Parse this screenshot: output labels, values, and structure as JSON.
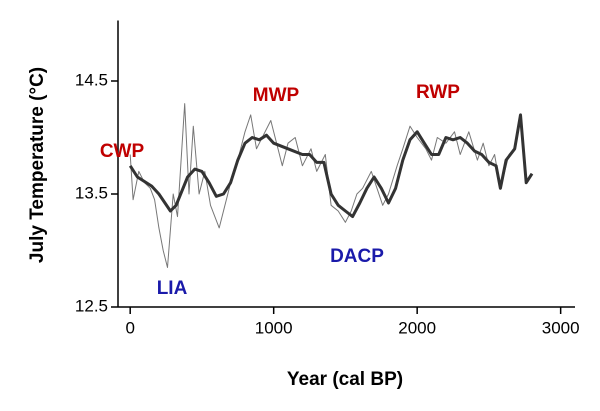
{
  "chart_data": {
    "type": "line",
    "x_label": "Year (cal BP)",
    "y_label": "July Temperature (°C)",
    "xlim": [
      -85,
      3100
    ],
    "xticks": [
      0,
      1000,
      2000,
      3000
    ],
    "ylim": [
      12.5,
      15.0
    ],
    "yticks": [
      12.5,
      13.5,
      14.5
    ],
    "series": [
      {
        "color": "#777777",
        "x": [
          0,
          20,
          60,
          100,
          140,
          170,
          200,
          230,
          260,
          300,
          330,
          380,
          410,
          440,
          480,
          520,
          560,
          620,
          680,
          720,
          760,
          800,
          840,
          880,
          920,
          980,
          1020,
          1060,
          1100,
          1150,
          1200,
          1260,
          1300,
          1360,
          1400,
          1450,
          1500,
          1540,
          1580,
          1620,
          1680,
          1720,
          1760,
          1800,
          1860,
          1900,
          1950,
          2000,
          2060,
          2100,
          2140,
          2200,
          2260,
          2300,
          2360,
          2420,
          2460,
          2500,
          2540,
          2580,
          2640,
          2680,
          2720,
          2760,
          2800
        ],
        "values": [
          13.85,
          13.45,
          13.7,
          13.6,
          13.55,
          13.45,
          13.2,
          13.0,
          12.85,
          13.5,
          13.3,
          14.3,
          13.5,
          14.1,
          13.5,
          13.7,
          13.4,
          13.2,
          13.5,
          13.7,
          13.85,
          14.05,
          14.2,
          13.9,
          14.0,
          14.15,
          13.95,
          13.75,
          13.95,
          14.0,
          13.75,
          13.9,
          13.7,
          13.85,
          13.4,
          13.35,
          13.25,
          13.35,
          13.5,
          13.55,
          13.7,
          13.55,
          13.4,
          13.5,
          13.75,
          13.9,
          14.1,
          14.0,
          13.9,
          13.8,
          14.0,
          13.95,
          14.05,
          13.85,
          14.05,
          13.8,
          13.95,
          13.75,
          13.85,
          13.55,
          13.85,
          13.9,
          14.2,
          13.6,
          13.68
        ]
      },
      {
        "color": "#333333",
        "x": [
          0,
          50,
          150,
          200,
          280,
          320,
          400,
          450,
          500,
          550,
          600,
          650,
          700,
          750,
          800,
          850,
          900,
          950,
          1000,
          1100,
          1200,
          1250,
          1300,
          1350,
          1400,
          1450,
          1500,
          1550,
          1600,
          1650,
          1700,
          1750,
          1800,
          1850,
          1900,
          1950,
          2000,
          2050,
          2100,
          2150,
          2200,
          2250,
          2300,
          2350,
          2400,
          2450,
          2500,
          2550,
          2580,
          2620,
          2680,
          2720,
          2760,
          2800
        ],
        "values": [
          13.75,
          13.65,
          13.57,
          13.5,
          13.35,
          13.4,
          13.65,
          13.72,
          13.7,
          13.6,
          13.48,
          13.5,
          13.6,
          13.8,
          13.95,
          14.0,
          13.98,
          14.02,
          13.95,
          13.9,
          13.85,
          13.85,
          13.78,
          13.78,
          13.5,
          13.4,
          13.35,
          13.3,
          13.42,
          13.55,
          13.65,
          13.55,
          13.42,
          13.55,
          13.8,
          13.98,
          14.05,
          13.95,
          13.85,
          13.85,
          14.0,
          13.98,
          14.0,
          13.95,
          13.88,
          13.85,
          13.78,
          13.75,
          13.55,
          13.8,
          13.9,
          14.2,
          13.6,
          13.68
        ]
      }
    ],
    "annotations": [
      {
        "text": "CWP",
        "color": "#c00000"
      },
      {
        "text": "MWP",
        "color": "#c00000"
      },
      {
        "text": "RWP",
        "color": "#c00000"
      },
      {
        "text": "LIA",
        "color": "#1a1aaa"
      },
      {
        "text": "DACP",
        "color": "#1a1aaa"
      }
    ]
  }
}
